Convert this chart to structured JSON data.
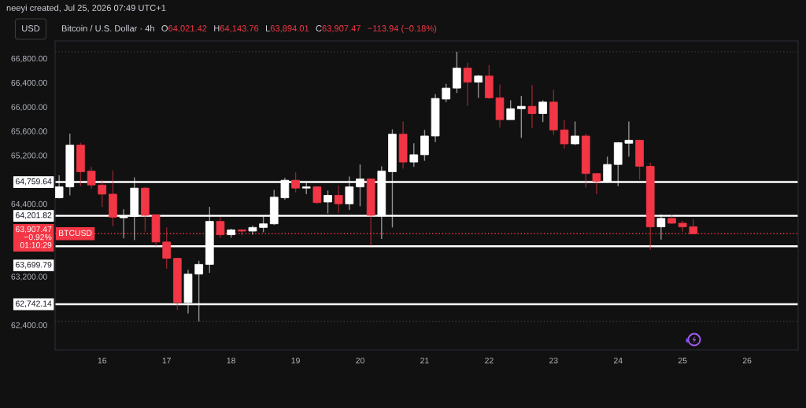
{
  "chart_data": {
    "type": "candlestick",
    "title": "Bitcoin / U.S. Dollar · 4h",
    "x": [
      "2026-07-15T08:00",
      "2026-07-15T12:00",
      "2026-07-15T16:00",
      "2026-07-15T20:00",
      "2026-07-16T00:00",
      "2026-07-16T04:00",
      "2026-07-16T08:00",
      "2026-07-16T12:00",
      "2026-07-16T16:00",
      "2026-07-16T20:00",
      "2026-07-17T00:00",
      "2026-07-17T04:00",
      "2026-07-17T08:00",
      "2026-07-17T12:00",
      "2026-07-17T16:00",
      "2026-07-17T20:00",
      "2026-07-18T00:00",
      "2026-07-18T04:00",
      "2026-07-18T08:00",
      "2026-07-18T12:00",
      "2026-07-18T16:00",
      "2026-07-18T20:00",
      "2026-07-19T00:00",
      "2026-07-19T04:00",
      "2026-07-19T08:00",
      "2026-07-19T12:00",
      "2026-07-19T16:00",
      "2026-07-19T20:00",
      "2026-07-20T00:00",
      "2026-07-20T04:00",
      "2026-07-20T08:00",
      "2026-07-20T12:00",
      "2026-07-20T16:00",
      "2026-07-20T20:00",
      "2026-07-21T00:00",
      "2026-07-21T04:00",
      "2026-07-21T08:00",
      "2026-07-21T12:00",
      "2026-07-21T16:00",
      "2026-07-21T20:00",
      "2026-07-22T00:00",
      "2026-07-22T04:00",
      "2026-07-22T08:00",
      "2026-07-22T12:00",
      "2026-07-22T16:00",
      "2026-07-22T20:00",
      "2026-07-23T00:00",
      "2026-07-23T04:00",
      "2026-07-23T08:00",
      "2026-07-23T12:00",
      "2026-07-23T16:00",
      "2026-07-23T20:00",
      "2026-07-24T00:00",
      "2026-07-24T04:00",
      "2026-07-24T08:00",
      "2026-07-24T12:00",
      "2026-07-24T16:00",
      "2026-07-24T20:00",
      "2026-07-25T00:00",
      "2026-07-25T04:00"
    ],
    "ohlc": [
      [
        64500,
        64870,
        64490,
        64680
      ],
      [
        64680,
        65560,
        64540,
        65370
      ],
      [
        65370,
        65410,
        64690,
        64930
      ],
      [
        64940,
        65010,
        64650,
        64710
      ],
      [
        64710,
        64800,
        64350,
        64560
      ],
      [
        64560,
        64950,
        64030,
        64180
      ],
      [
        64170,
        64310,
        63830,
        64190
      ],
      [
        64190,
        64840,
        63800,
        64660
      ],
      [
        64660,
        64680,
        63940,
        64210
      ],
      [
        64220,
        64230,
        63700,
        63770
      ],
      [
        63770,
        64010,
        63330,
        63500
      ],
      [
        63500,
        63510,
        62650,
        62770
      ],
      [
        62770,
        63310,
        62590,
        63240
      ],
      [
        63240,
        63460,
        62460,
        63400
      ],
      [
        63400,
        64350,
        63260,
        64110
      ],
      [
        64110,
        64180,
        63840,
        63890
      ],
      [
        63890,
        63990,
        63840,
        63970
      ],
      [
        63970,
        63980,
        63880,
        63950
      ],
      [
        63950,
        64040,
        63890,
        64010
      ],
      [
        64010,
        64210,
        63930,
        64070
      ],
      [
        64070,
        64630,
        64050,
        64510
      ],
      [
        64500,
        64830,
        64470,
        64790
      ],
      [
        64790,
        64920,
        64590,
        64660
      ],
      [
        64660,
        64770,
        64560,
        64680
      ],
      [
        64680,
        64690,
        64400,
        64420
      ],
      [
        64430,
        64620,
        64240,
        64540
      ],
      [
        64540,
        64700,
        64250,
        64400
      ],
      [
        64400,
        64850,
        64300,
        64680
      ],
      [
        64680,
        65050,
        64360,
        64810
      ],
      [
        64810,
        64820,
        63710,
        64210
      ],
      [
        64200,
        65020,
        63820,
        64940
      ],
      [
        64930,
        65630,
        64010,
        65550
      ],
      [
        65550,
        65760,
        64980,
        65090
      ],
      [
        65090,
        65400,
        65010,
        65210
      ],
      [
        65210,
        65620,
        65110,
        65520
      ],
      [
        65520,
        66210,
        65420,
        66140
      ],
      [
        66130,
        66380,
        66080,
        66310
      ],
      [
        66310,
        66910,
        66230,
        66640
      ],
      [
        66640,
        66730,
        66020,
        66410
      ],
      [
        66410,
        66530,
        66150,
        66510
      ],
      [
        66510,
        66690,
        66130,
        66150
      ],
      [
        66150,
        66370,
        65660,
        65790
      ],
      [
        65790,
        66110,
        65790,
        65970
      ],
      [
        65970,
        66180,
        65490,
        66010
      ],
      [
        66010,
        66360,
        65650,
        65890
      ],
      [
        65890,
        66110,
        65750,
        66080
      ],
      [
        66080,
        66280,
        65540,
        65620
      ],
      [
        65620,
        65780,
        65310,
        65390
      ],
      [
        65390,
        65760,
        65370,
        65520
      ],
      [
        65520,
        65560,
        64670,
        64900
      ],
      [
        64900,
        64900,
        64560,
        64770
      ],
      [
        64770,
        65180,
        64750,
        65050
      ],
      [
        65050,
        65420,
        64690,
        65410
      ],
      [
        65400,
        65760,
        65180,
        65450
      ],
      [
        65450,
        65450,
        64800,
        65020
      ],
      [
        65020,
        65080,
        63640,
        64020
      ],
      [
        64020,
        64230,
        63810,
        64160
      ],
      [
        64160,
        64220,
        64070,
        64080
      ],
      [
        64080,
        64120,
        63940,
        64020
      ],
      [
        64021.42,
        64143.76,
        63894.01,
        63907.47
      ]
    ],
    "colors": [
      "#ffffff",
      "#ffffff",
      "#f23645",
      "#f23645",
      "#f23645",
      "#f23645",
      "#ffffff",
      "#ffffff",
      "#f23645",
      "#f23645",
      "#f23645",
      "#f23645",
      "#ffffff",
      "#ffffff",
      "#ffffff",
      "#f23645",
      "#ffffff",
      "#f23645",
      "#ffffff",
      "#ffffff",
      "#ffffff",
      "#ffffff",
      "#f23645",
      "#ffffff",
      "#f23645",
      "#ffffff",
      "#f23645",
      "#ffffff",
      "#ffffff",
      "#f23645",
      "#ffffff",
      "#ffffff",
      "#f23645",
      "#ffffff",
      "#ffffff",
      "#ffffff",
      "#ffffff",
      "#ffffff",
      "#f23645",
      "#ffffff",
      "#f23645",
      "#f23645",
      "#ffffff",
      "#ffffff",
      "#f23645",
      "#ffffff",
      "#f23645",
      "#f23645",
      "#ffffff",
      "#f23645",
      "#f23645",
      "#ffffff",
      "#ffffff",
      "#ffffff",
      "#f23645",
      "#f23645",
      "#ffffff",
      "#f23645",
      "#f23645",
      "#f23645"
    ],
    "xlim": [
      "2026-07-15T06:30",
      "2026-07-26T19:00"
    ],
    "xticks": [
      {
        "value": "2026-07-16",
        "label": "16"
      },
      {
        "value": "2026-07-17",
        "label": "17"
      },
      {
        "value": "2026-07-18",
        "label": "18"
      },
      {
        "value": "2026-07-19",
        "label": "19"
      },
      {
        "value": "2026-07-20",
        "label": "20"
      },
      {
        "value": "2026-07-21",
        "label": "21"
      },
      {
        "value": "2026-07-22",
        "label": "22"
      },
      {
        "value": "2026-07-23",
        "label": "23"
      },
      {
        "value": "2026-07-24",
        "label": "24"
      },
      {
        "value": "2026-07-25",
        "label": "25"
      },
      {
        "value": "2026-07-26",
        "label": "26"
      }
    ],
    "ylim": [
      61990,
      67090
    ],
    "yticks": [
      {
        "value": 62400,
        "label": "62,400.00"
      },
      {
        "value": 63200,
        "label": "63,200.00"
      },
      {
        "value": 64400,
        "label": "64,400.00"
      },
      {
        "value": 65200,
        "label": "65,200.00"
      },
      {
        "value": 65600,
        "label": "65,600.00"
      },
      {
        "value": 66000,
        "label": "66,000.00"
      },
      {
        "value": 66400,
        "label": "66,400.00"
      },
      {
        "value": 66800,
        "label": "66,800.00"
      }
    ],
    "grid": false,
    "ref_lines": [
      {
        "axis": "y",
        "value": 66910,
        "color": "#3a3a3a",
        "line_style": "dotted"
      },
      {
        "axis": "y",
        "value": 62460,
        "color": "#3a3a3a",
        "line_style": "dotted"
      },
      {
        "axis": "y",
        "value": 64759.64,
        "label": "64,759.64",
        "color": "#ffffff",
        "line_style": "solid"
      },
      {
        "axis": "y",
        "value": 64201.82,
        "label": "64,201.82",
        "color": "#ffffff",
        "line_style": "solid"
      },
      {
        "axis": "y",
        "value": 63907.47,
        "label": "63,907.47\n−0.92%\n01:10:29",
        "color": "#f23645",
        "line_style": "dotted"
      },
      {
        "axis": "y",
        "value": 63699.79,
        "label": "63,699.79",
        "color": "#ffffff",
        "line_style": "solid"
      },
      {
        "axis": "y",
        "value": 62742.14,
        "label": "62,742.14",
        "color": "#ffffff",
        "line_style": "solid"
      }
    ],
    "annotations": [
      "neeyi created, Jul 25, 2026 07:49 UTC+1",
      "USD",
      "O",
      "64,021.42",
      "H",
      "64,143.76",
      "L",
      "63,894.01",
      "C",
      "63,907.47",
      "−113.94 (−0.18%)",
      {
        "text": "BTCUSD",
        "y": 63907.47
      }
    ]
  }
}
